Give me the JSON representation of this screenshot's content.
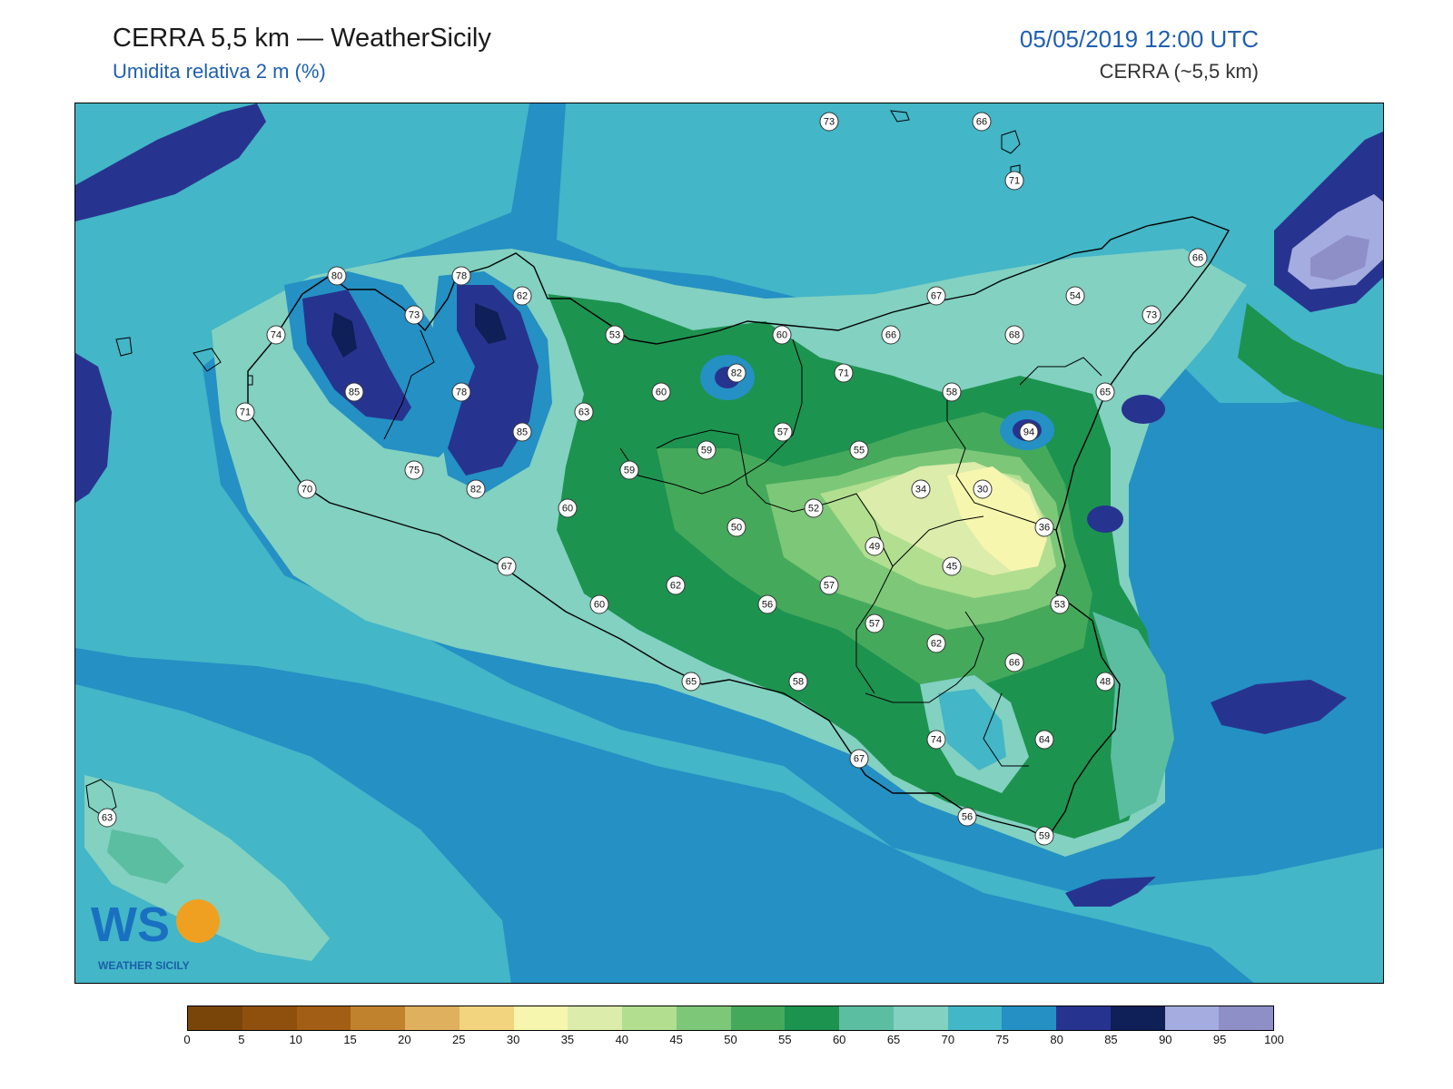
{
  "header": {
    "title": "CERRA 5,5 km — WeatherSicily",
    "subtitle": "Umidita relativa 2 m (%)",
    "datetime": "05/05/2019 12:00 UTC",
    "model": "CERRA (~5,5 km)"
  },
  "logo": {
    "mark": "WS",
    "text": "WEATHER SICILY"
  },
  "legend": {
    "ticks": [
      "0",
      "5",
      "10",
      "15",
      "20",
      "25",
      "30",
      "35",
      "40",
      "45",
      "50",
      "55",
      "60",
      "65",
      "70",
      "75",
      "80",
      "85",
      "90",
      "95",
      "100"
    ],
    "colors": [
      "#7a4509",
      "#8f500e",
      "#a25e14",
      "#c0822d",
      "#dfb05e",
      "#f2d47e",
      "#f6f6ae",
      "#dcecab",
      "#b1de8f",
      "#7dc779",
      "#45a95b",
      "#1d9350",
      "#5bbea1",
      "#82d1c1",
      "#43b6c7",
      "#2490c4",
      "#27348f",
      "#0f1f57",
      "#a5acdf",
      "#8f8fc8"
    ]
  },
  "station_labels": [
    {
      "v": "73"
    },
    {
      "v": "66"
    },
    {
      "v": "71"
    },
    {
      "v": "80"
    },
    {
      "v": "78"
    },
    {
      "v": "62"
    },
    {
      "v": "73"
    },
    {
      "v": "74"
    },
    {
      "v": "85"
    },
    {
      "v": "78"
    },
    {
      "v": "71"
    },
    {
      "v": "85"
    },
    {
      "v": "75"
    },
    {
      "v": "82"
    },
    {
      "v": "70"
    },
    {
      "v": "53"
    },
    {
      "v": "60"
    },
    {
      "v": "82"
    },
    {
      "v": "60"
    },
    {
      "v": "63"
    },
    {
      "v": "59"
    },
    {
      "v": "59"
    },
    {
      "v": "57"
    },
    {
      "v": "66"
    },
    {
      "v": "71"
    },
    {
      "v": "67"
    },
    {
      "v": "68"
    },
    {
      "v": "54"
    },
    {
      "v": "66"
    },
    {
      "v": "73"
    },
    {
      "v": "58"
    },
    {
      "v": "55"
    },
    {
      "v": "94"
    },
    {
      "v": "65"
    },
    {
      "v": "34"
    },
    {
      "v": "30"
    },
    {
      "v": "52"
    },
    {
      "v": "60"
    },
    {
      "v": "50"
    },
    {
      "v": "36"
    },
    {
      "v": "49"
    },
    {
      "v": "45"
    },
    {
      "v": "67"
    },
    {
      "v": "62"
    },
    {
      "v": "57"
    },
    {
      "v": "60"
    },
    {
      "v": "56"
    },
    {
      "v": "53"
    },
    {
      "v": "57"
    },
    {
      "v": "62"
    },
    {
      "v": "66"
    },
    {
      "v": "65"
    },
    {
      "v": "58"
    },
    {
      "v": "48"
    },
    {
      "v": "74"
    },
    {
      "v": "64"
    },
    {
      "v": "67"
    },
    {
      "v": "63"
    },
    {
      "v": "56"
    },
    {
      "v": "59"
    }
  ]
}
